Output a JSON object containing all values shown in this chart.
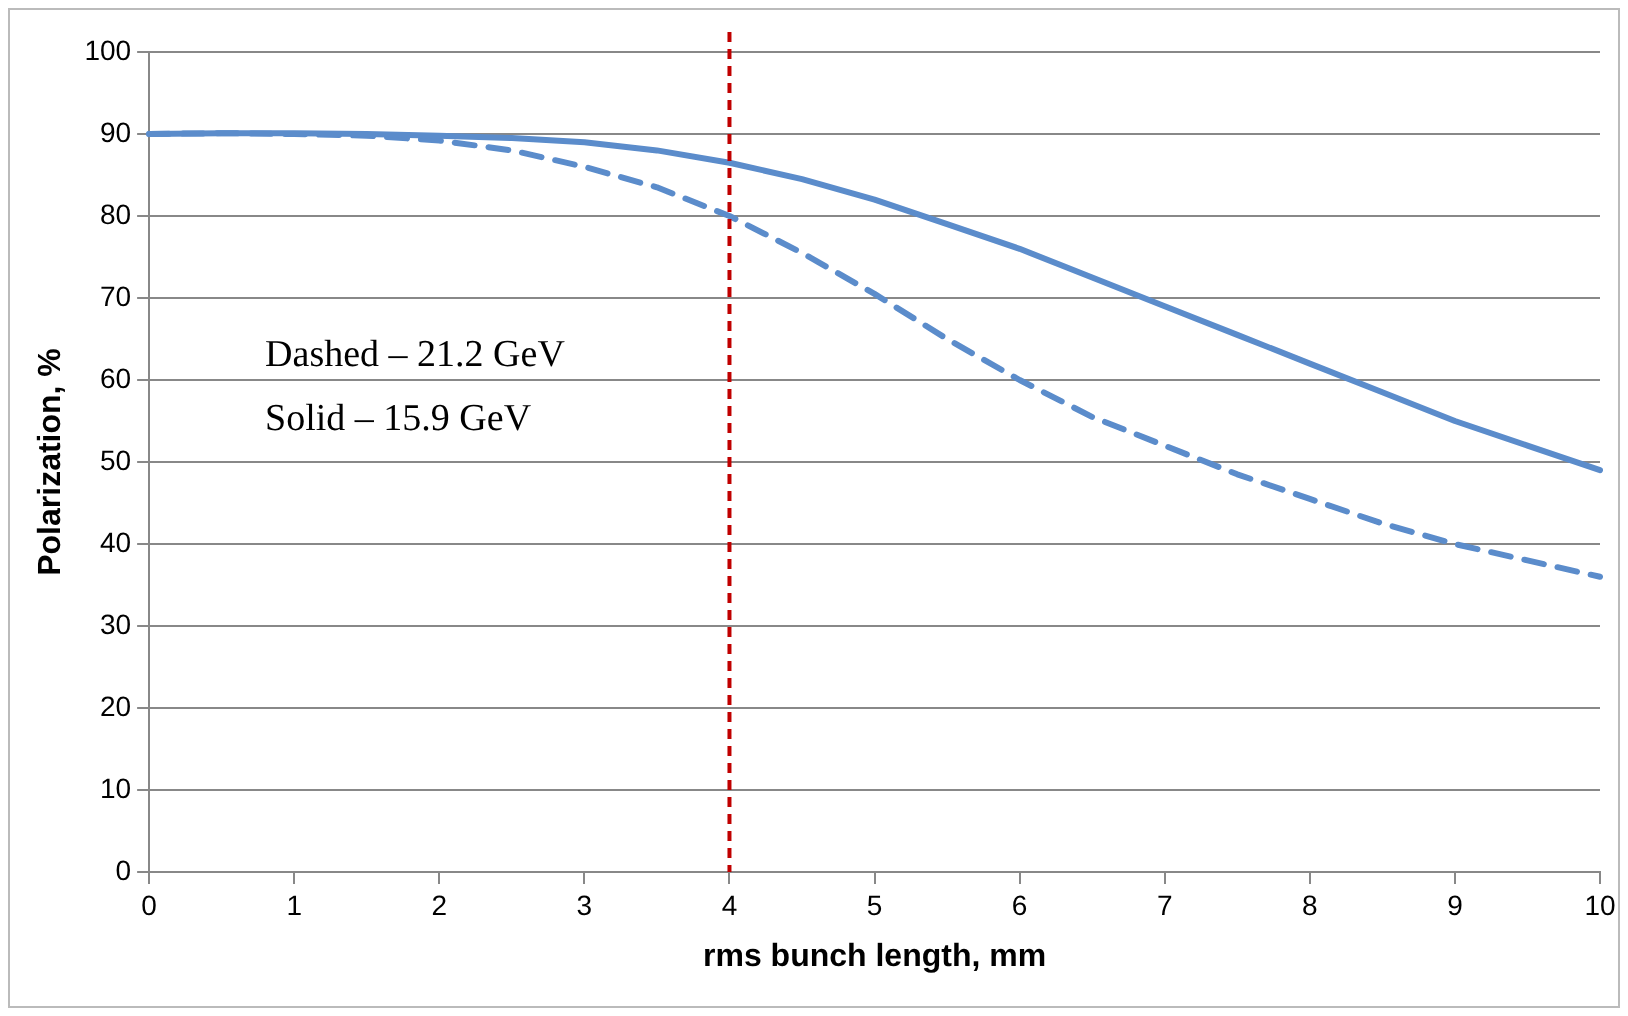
{
  "chart_data": {
    "type": "line",
    "xlabel": "rms bunch length, mm",
    "ylabel": "Polarization, %",
    "xlim": [
      0,
      10
    ],
    "xticks": [
      0,
      1,
      2,
      3,
      4,
      5,
      6,
      7,
      8,
      9,
      10
    ],
    "ylim": [
      0,
      100
    ],
    "yticks": [
      0,
      10,
      20,
      30,
      40,
      50,
      60,
      70,
      80,
      90,
      100
    ],
    "grid": "y",
    "legend": false,
    "marker": "none",
    "series": [
      {
        "color": "#5b8ccb",
        "line_style": "solid",
        "x": [
          0,
          0.5,
          1,
          1.5,
          2,
          2.5,
          3,
          3.5,
          4,
          4.5,
          5,
          5.5,
          6,
          6.5,
          7,
          7.5,
          8,
          8.5,
          9,
          9.5,
          10
        ],
        "values": [
          90,
          90.1,
          90.1,
          90,
          89.8,
          89.5,
          89,
          88,
          86.5,
          84.5,
          82,
          79,
          76,
          72.5,
          69,
          65.5,
          62,
          58.5,
          55,
          52,
          49
        ]
      },
      {
        "color": "#5b8ccb",
        "line_style": "dashed",
        "x": [
          0,
          0.5,
          1,
          1.5,
          2,
          2.5,
          3,
          3.5,
          4,
          4.5,
          5,
          5.5,
          6,
          6.5,
          7,
          7.5,
          8,
          8.5,
          9,
          9.5,
          10
        ],
        "values": [
          90,
          90.1,
          90,
          89.8,
          89.2,
          88,
          86,
          83.5,
          80,
          75.5,
          70.5,
          65,
          60,
          55.5,
          52,
          48.5,
          45.5,
          42.5,
          40,
          38,
          36
        ]
      }
    ],
    "ref_lines": [
      {
        "axis": "x",
        "value": 4,
        "color": "#c00000",
        "line_style": "dashed"
      }
    ],
    "annotations": [
      "Dashed – 21.2 GeV",
      "Solid – 15.9 GeV"
    ]
  }
}
